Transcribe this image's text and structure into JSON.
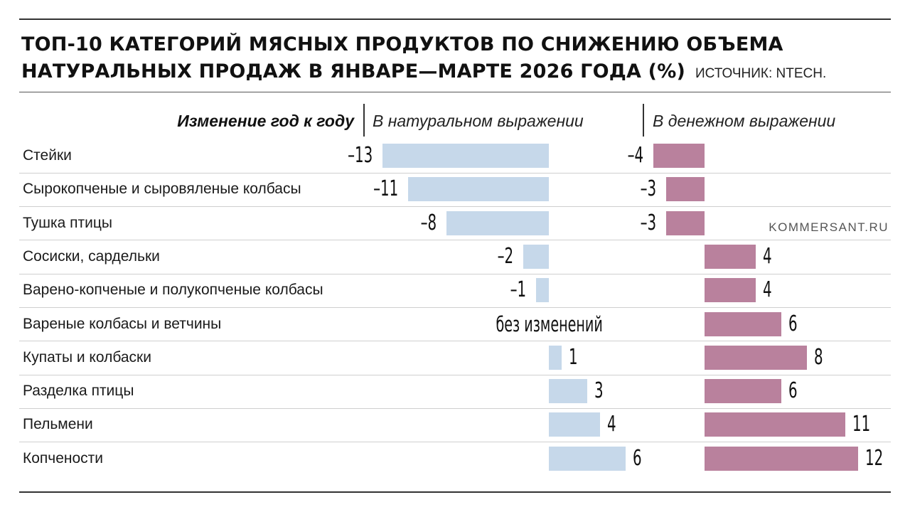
{
  "chart_data": {
    "type": "bar",
    "title_line1": "ТОП-10 КАТЕГОРИЙ МЯСНЫХ ПРОДУКТОВ ПО СНИЖЕНИЮ ОБЪЕМА",
    "title_line2": "НАТУРАЛЬНЫХ ПРОДАЖ В ЯНВАРЕ—МАРТЕ 2026 ГОДА (%)",
    "source": "ИСТОЧНИК: NTECH.",
    "header_label": "Изменение год к году",
    "categories": [
      "Стейки",
      "Сырокопченые и сыровяленые колбасы",
      "Тушка птицы",
      "Сосиски, сардельки",
      "Варено-копченые и полукопченые колбасы",
      "Вареные колбасы и ветчины",
      "Купаты и колбаски",
      "Разделка птицы",
      "Пельмени",
      "Копчености"
    ],
    "series": [
      {
        "name": "В натуральном выражении",
        "values": [
          -13,
          -11,
          -8,
          -2,
          -1,
          0,
          1,
          3,
          4,
          6
        ],
        "labels": [
          "–13",
          "–11",
          "–8",
          "–2",
          "–1",
          "без изменений",
          "1",
          "3",
          "4",
          "6"
        ],
        "color": "#c6d8ea"
      },
      {
        "name": "В денежном выражении",
        "values": [
          -4,
          -3,
          -3,
          4,
          4,
          6,
          8,
          6,
          11,
          12
        ],
        "labels": [
          "–4",
          "–3",
          "–3",
          "4",
          "4",
          "6",
          "8",
          "6",
          "11",
          "12"
        ],
        "color": "#b9819d"
      }
    ],
    "unit": "%",
    "watermark": "KOMMERSANT.RU"
  }
}
